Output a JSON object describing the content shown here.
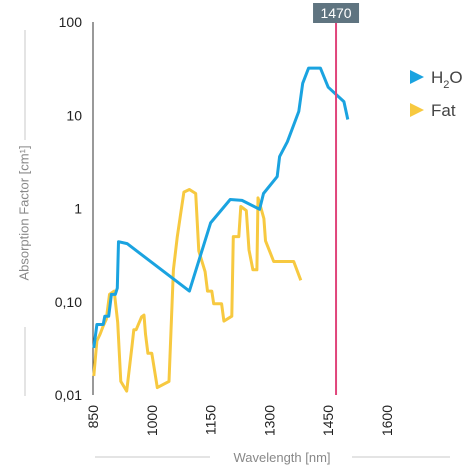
{
  "chart_data": {
    "type": "line",
    "xlabel": "Wavelength [nm]",
    "ylabel": "Absorption Factor [cm¹]",
    "x_scale": "linear",
    "y_scale": "log",
    "xlim": [
      850,
      1600
    ],
    "ylim": [
      0.01,
      100
    ],
    "x_ticks": [
      "850",
      "1000",
      "1150",
      "1300",
      "1450",
      "1600"
    ],
    "y_ticks": [
      "100",
      "10",
      "1",
      "0,10",
      "0,01"
    ],
    "legend_position": "top-right",
    "grid": false,
    "marker": {
      "x": 1470,
      "label": "1470",
      "color": "#e0457b"
    },
    "series": [
      {
        "name": "H2O",
        "legend_main": "H",
        "legend_sub": "2",
        "legend_tail": "O",
        "color": "#1aa3e0",
        "points": [
          [
            852,
            0.032
          ],
          [
            860,
            0.057
          ],
          [
            876,
            0.057
          ],
          [
            880,
            0.07
          ],
          [
            890,
            0.07
          ],
          [
            897,
            0.12
          ],
          [
            907,
            0.12
          ],
          [
            912,
            0.14
          ],
          [
            915,
            0.44
          ],
          [
            937,
            0.42
          ],
          [
            1096,
            0.13
          ],
          [
            1150,
            0.7
          ],
          [
            1200,
            1.25
          ],
          [
            1230,
            1.22
          ],
          [
            1275,
            0.98
          ],
          [
            1285,
            1.45
          ],
          [
            1320,
            2.2
          ],
          [
            1326,
            3.6
          ],
          [
            1346,
            5.2
          ],
          [
            1375,
            11
          ],
          [
            1385,
            22
          ],
          [
            1400,
            32
          ],
          [
            1430,
            32
          ],
          [
            1450,
            20
          ],
          [
            1490,
            14
          ],
          [
            1500,
            9
          ]
        ]
      },
      {
        "name": "Fat",
        "color": "#f7c940",
        "points": [
          [
            852,
            0.016
          ],
          [
            860,
            0.038
          ],
          [
            868,
            0.045
          ],
          [
            876,
            0.055
          ],
          [
            884,
            0.065
          ],
          [
            892,
            0.12
          ],
          [
            904,
            0.13
          ],
          [
            913,
            0.06
          ],
          [
            921,
            0.014
          ],
          [
            936,
            0.011
          ],
          [
            950,
            0.035
          ],
          [
            954,
            0.05
          ],
          [
            960,
            0.05
          ],
          [
            974,
            0.069
          ],
          [
            980,
            0.072
          ],
          [
            984,
            0.045
          ],
          [
            990,
            0.028
          ],
          [
            1000,
            0.028
          ],
          [
            1014,
            0.012
          ],
          [
            1044,
            0.014
          ],
          [
            1055,
            0.22
          ],
          [
            1065,
            0.5
          ],
          [
            1074,
            0.9
          ],
          [
            1082,
            1.5
          ],
          [
            1096,
            1.6
          ],
          [
            1112,
            1.45
          ],
          [
            1120,
            0.35
          ],
          [
            1136,
            0.21
          ],
          [
            1142,
            0.13
          ],
          [
            1153,
            0.13
          ],
          [
            1158,
            0.095
          ],
          [
            1178,
            0.095
          ],
          [
            1184,
            0.062
          ],
          [
            1204,
            0.07
          ],
          [
            1208,
            0.5
          ],
          [
            1222,
            0.5
          ],
          [
            1227,
            1.05
          ],
          [
            1241,
            0.95
          ],
          [
            1248,
            0.36
          ],
          [
            1258,
            0.22
          ],
          [
            1268,
            0.22
          ],
          [
            1271,
            1.3
          ],
          [
            1276,
            1.1
          ],
          [
            1286,
            0.78
          ],
          [
            1290,
            0.45
          ],
          [
            1311,
            0.27
          ],
          [
            1362,
            0.27
          ],
          [
            1380,
            0.17
          ]
        ]
      }
    ]
  }
}
